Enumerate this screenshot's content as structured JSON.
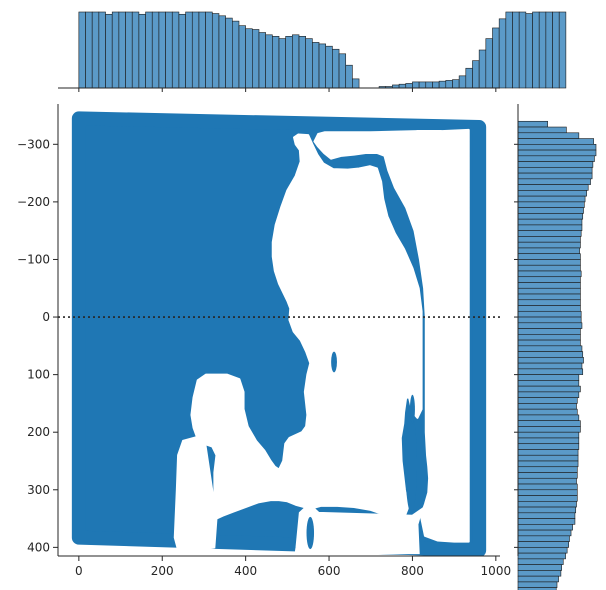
{
  "chart_data": {
    "type": "scatter",
    "title": "",
    "xlabel": "",
    "ylabel": "",
    "xlim": [
      -50,
      1010
    ],
    "ylim": [
      -370,
      415
    ],
    "y_inverted": true,
    "xticks": [
      0,
      200,
      400,
      600,
      800,
      1000
    ],
    "yticks": [
      -300,
      -200,
      -100,
      0,
      100,
      200,
      300,
      400
    ],
    "grid": false,
    "legend": "none",
    "point_color": "#1f77b4",
    "hist_color": "#5b9ac8",
    "reference_line": {
      "orientation": "horizontal",
      "y": 0,
      "style": "dotted",
      "color": "#262626"
    },
    "marginal_x_histogram": {
      "bin_start": 0,
      "bin_width": 16,
      "counts": [
        100,
        100,
        100,
        100,
        97,
        100,
        100,
        100,
        100,
        97,
        100,
        100,
        100,
        100,
        100,
        97,
        100,
        100,
        100,
        100,
        98,
        95,
        92,
        88,
        82,
        78,
        77,
        73,
        70,
        68,
        65,
        68,
        70,
        68,
        65,
        60,
        58,
        55,
        51,
        45,
        30,
        12,
        0,
        0,
        0,
        2,
        2,
        4,
        5,
        6,
        8,
        8,
        8,
        8,
        9,
        10,
        11,
        16,
        26,
        36,
        50,
        65,
        79,
        91,
        100,
        100,
        100,
        98,
        100,
        100,
        100,
        100,
        100
      ]
    },
    "marginal_y_histogram": {
      "bin_start": -340,
      "bin_width": 10,
      "counts": [
        38,
        62,
        78,
        97,
        100,
        100,
        98,
        96,
        95,
        95,
        93,
        90,
        88,
        86,
        85,
        84,
        83,
        82,
        82,
        81,
        80,
        80,
        79,
        80,
        80,
        80,
        81,
        80,
        80,
        80,
        80,
        80,
        80,
        81,
        81,
        82,
        80,
        80,
        80,
        82,
        83,
        84,
        82,
        83,
        78,
        78,
        80,
        78,
        76,
        75,
        76,
        78,
        80,
        80,
        78,
        78,
        78,
        77,
        77,
        77,
        76,
        76,
        75,
        76,
        76,
        76,
        75,
        74,
        73,
        73,
        70,
        68,
        66,
        65,
        63,
        61,
        58,
        56,
        55,
        52,
        50,
        49,
        42,
        33,
        20
      ]
    },
    "mask_regions": [
      [
        [
          516,
          -312
        ],
        [
          526,
          -317
        ],
        [
          550,
          -316
        ],
        [
          560,
          -300
        ],
        [
          572,
          -282
        ],
        [
          586,
          -267
        ],
        [
          610,
          -257
        ],
        [
          645,
          -256
        ],
        [
          672,
          -258
        ],
        [
          698,
          -262
        ],
        [
          715,
          -258
        ],
        [
          725,
          -235
        ],
        [
          730,
          -205
        ],
        [
          740,
          -175
        ],
        [
          758,
          -145
        ],
        [
          780,
          -118
        ],
        [
          800,
          -85
        ],
        [
          815,
          -50
        ],
        [
          822,
          -10
        ],
        [
          822,
          30
        ],
        [
          822,
          70
        ],
        [
          822,
          120
        ],
        [
          822,
          160
        ],
        [
          812,
          175
        ],
        [
          800,
          165
        ],
        [
          792,
          140
        ],
        [
          785,
          140
        ],
        [
          780,
          165
        ],
        [
          778,
          185
        ],
        [
          772,
          210
        ],
        [
          774,
          250
        ],
        [
          782,
          300
        ],
        [
          790,
          330
        ],
        [
          782,
          345
        ],
        [
          770,
          350
        ],
        [
          740,
          345
        ],
        [
          700,
          335
        ],
        [
          660,
          330
        ],
        [
          620,
          328
        ],
        [
          580,
          328
        ],
        [
          560,
          332
        ],
        [
          540,
          330
        ],
        [
          520,
          326
        ],
        [
          500,
          320
        ],
        [
          480,
          318
        ],
        [
          460,
          318
        ],
        [
          430,
          322
        ],
        [
          400,
          330
        ],
        [
          370,
          338
        ],
        [
          345,
          345
        ],
        [
          330,
          350
        ],
        [
          325,
          335
        ],
        [
          325,
          305
        ],
        [
          325,
          270
        ],
        [
          330,
          240
        ],
        [
          320,
          225
        ],
        [
          300,
          220
        ],
        [
          285,
          212
        ],
        [
          275,
          192
        ],
        [
          270,
          170
        ],
        [
          275,
          140
        ],
        [
          285,
          110
        ],
        [
          305,
          100
        ],
        [
          330,
          100
        ],
        [
          355,
          100
        ],
        [
          385,
          108
        ],
        [
          395,
          130
        ],
        [
          395,
          160
        ],
        [
          405,
          190
        ],
        [
          425,
          215
        ],
        [
          445,
          232
        ],
        [
          460,
          250
        ],
        [
          470,
          260
        ],
        [
          480,
          265
        ],
        [
          490,
          250
        ],
        [
          495,
          220
        ],
        [
          505,
          210
        ],
        [
          520,
          205
        ],
        [
          535,
          200
        ],
        [
          545,
          190
        ],
        [
          548,
          170
        ],
        [
          545,
          150
        ],
        [
          542,
          130
        ],
        [
          548,
          100
        ],
        [
          555,
          80
        ],
        [
          545,
          60
        ],
        [
          532,
          40
        ],
        [
          515,
          25
        ],
        [
          505,
          5
        ],
        [
          507,
          -15
        ],
        [
          500,
          -28
        ],
        [
          492,
          -40
        ],
        [
          480,
          -58
        ],
        [
          470,
          -80
        ],
        [
          465,
          -105
        ],
        [
          465,
          -130
        ],
        [
          472,
          -160
        ],
        [
          485,
          -190
        ],
        [
          500,
          -220
        ],
        [
          520,
          -245
        ],
        [
          532,
          -270
        ],
        [
          530,
          -290
        ],
        [
          520,
          -300
        ]
      ],
      [
        [
          565,
          -305
        ],
        [
          574,
          -318
        ],
        [
          590,
          -321
        ],
        [
          640,
          -321
        ],
        [
          700,
          -321
        ],
        [
          760,
          -322
        ],
        [
          810,
          -323
        ],
        [
          870,
          -323
        ],
        [
          935,
          -325
        ],
        [
          935,
          -300
        ],
        [
          935,
          -250
        ],
        [
          935,
          -150
        ],
        [
          935,
          -50
        ],
        [
          935,
          50
        ],
        [
          935,
          150
        ],
        [
          935,
          250
        ],
        [
          935,
          350
        ],
        [
          935,
          390
        ],
        [
          900,
          390
        ],
        [
          860,
          388
        ],
        [
          830,
          380
        ],
        [
          820,
          345
        ],
        [
          830,
          325
        ],
        [
          838,
          305
        ],
        [
          840,
          280
        ],
        [
          838,
          260
        ],
        [
          835,
          240
        ],
        [
          832,
          200
        ],
        [
          832,
          150
        ],
        [
          832,
          100
        ],
        [
          832,
          50
        ],
        [
          832,
          0
        ],
        [
          828,
          -50
        ],
        [
          818,
          -100
        ],
        [
          805,
          -150
        ],
        [
          785,
          -190
        ],
        [
          758,
          -225
        ],
        [
          742,
          -255
        ],
        [
          733,
          -280
        ],
        [
          715,
          -285
        ],
        [
          690,
          -285
        ],
        [
          660,
          -282
        ],
        [
          630,
          -280
        ],
        [
          605,
          -275
        ],
        [
          588,
          -285
        ],
        [
          574,
          -296
        ]
      ]
    ]
  }
}
